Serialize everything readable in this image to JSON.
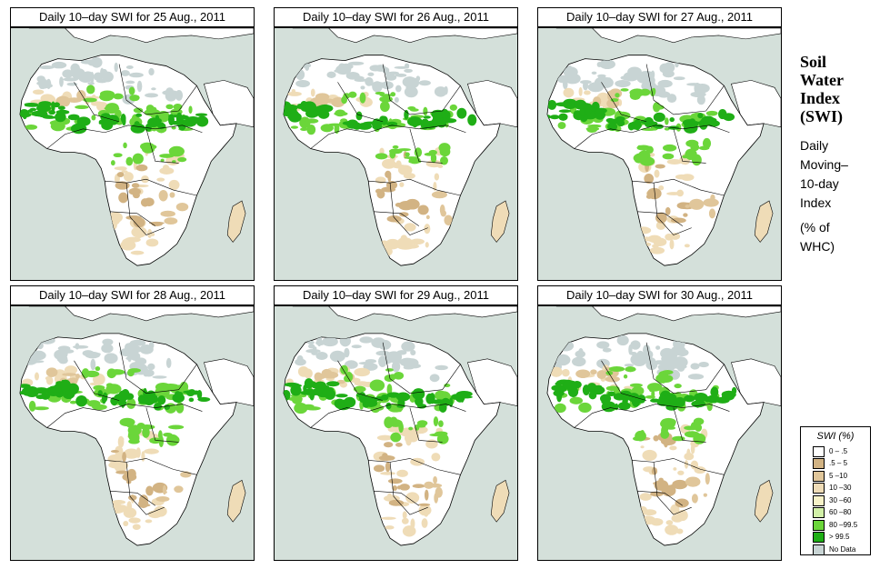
{
  "figure": {
    "heading": [
      "Soil",
      "Water",
      "Index",
      "(SWI)"
    ],
    "description": [
      "Daily",
      "Moving–",
      "10-day",
      "Index"
    ],
    "unit_note": [
      "(% of",
      " WHC)"
    ],
    "colors": {
      "ocean": "#d4e0da",
      "land": "#ffffff",
      "border": "#000000"
    }
  },
  "panels": [
    {
      "title": "Daily 10–day SWI for  25 Aug., 2011",
      "date": "25 Aug., 2011"
    },
    {
      "title": "Daily 10–day SWI for  26 Aug., 2011",
      "date": "26 Aug., 2011"
    },
    {
      "title": "Daily 10–day SWI for  27 Aug., 2011",
      "date": "27 Aug., 2011"
    },
    {
      "title": "Daily 10–day SWI for  28 Aug., 2011",
      "date": "28 Aug., 2011"
    },
    {
      "title": "Daily 10–day SWI for  29 Aug., 2011",
      "date": "29 Aug., 2011"
    },
    {
      "title": "Daily 10–day SWI for  30 Aug., 2011",
      "date": "30 Aug., 2011"
    }
  ],
  "legend": {
    "title": "SWI (%)",
    "items": [
      {
        "label": "0 – .5",
        "color": "#ffffff"
      },
      {
        "label": ".5 – 5",
        "color": "#d2b383"
      },
      {
        "label": "5 –10",
        "color": "#e0c69a"
      },
      {
        "label": "10 –30",
        "color": "#efdcb7"
      },
      {
        "label": "30 –60",
        "color": "#f7f2c8"
      },
      {
        "label": "60 –80",
        "color": "#d2f0a8"
      },
      {
        "label": "80 –99.5",
        "color": "#6bd63a"
      },
      {
        "label": "> 99.5",
        "color": "#1fae16"
      },
      {
        "label": "No Data",
        "color": "#c8d4d4"
      }
    ]
  }
}
